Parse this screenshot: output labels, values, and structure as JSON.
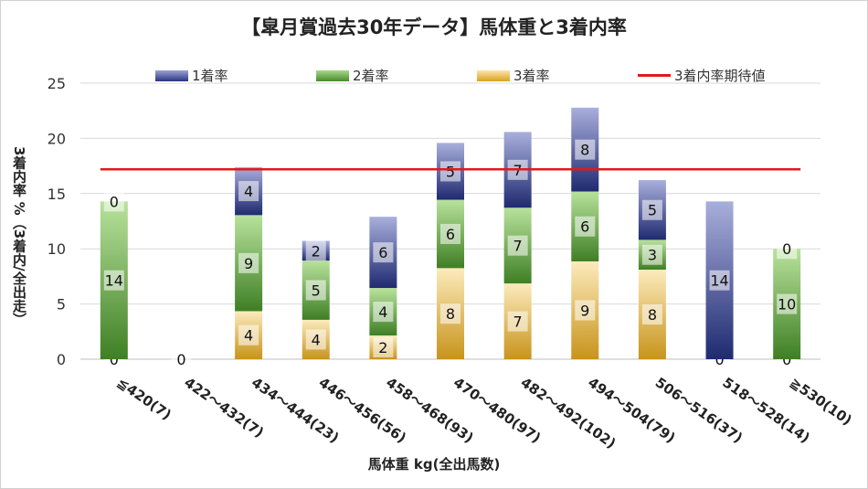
{
  "chart_data": {
    "type": "bar",
    "stacked": true,
    "title": "【皐月賞過去30年データ】馬体重と3着内率",
    "xlabel": "馬体重 kg(全出馬数)",
    "ylabel": "3着内率 %（3着内/全出走）",
    "ylim": [
      0,
      25
    ],
    "yticks": [
      0,
      5,
      10,
      15,
      20,
      25
    ],
    "grid": true,
    "legend_position": "top",
    "categories": [
      "≦420(7)",
      "422～432(7)",
      "434～444(23)",
      "446～456(56)",
      "458～468(93)",
      "470～480(97)",
      "482～492(102)",
      "494～504(79)",
      "506～516(37)",
      "518～528(14)",
      "≧530(10)"
    ],
    "series": [
      {
        "name": "3着率",
        "color": "#d9a321",
        "values": [
          0,
          0,
          4.35,
          3.57,
          2.15,
          8.25,
          6.86,
          8.86,
          8.11,
          0,
          0
        ],
        "labels": [
          "0",
          "0",
          "4",
          "4",
          "2",
          "8",
          "7",
          "9",
          "8",
          "0",
          "0"
        ]
      },
      {
        "name": "2着率",
        "color": "#5a9a35",
        "values": [
          14.29,
          0,
          8.7,
          5.36,
          4.3,
          6.19,
          6.86,
          6.33,
          2.7,
          0,
          10.0
        ],
        "labels": [
          "14",
          "",
          "9",
          "5",
          "4",
          "6",
          "7",
          "6",
          "3",
          "",
          "10"
        ]
      },
      {
        "name": "1着率",
        "color": "#2a3480",
        "values": [
          0,
          0,
          4.35,
          1.79,
          6.45,
          5.15,
          6.86,
          7.59,
          5.41,
          14.29,
          0
        ],
        "labels": [
          "0",
          "",
          "4",
          "2",
          "6",
          "5",
          "7",
          "8",
          "5",
          "14",
          "0"
        ]
      }
    ],
    "reference_line": {
      "name": "3着内率期待値",
      "value": 17.2,
      "color": "#e0191b"
    }
  }
}
